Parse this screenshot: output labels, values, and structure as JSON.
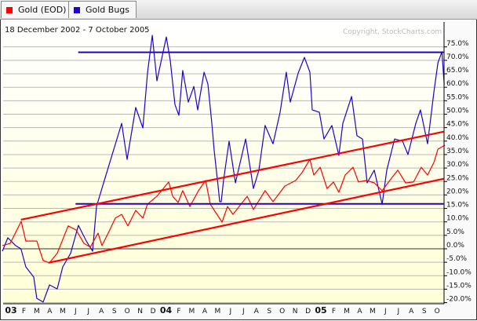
{
  "tabs": [
    {
      "label": "Gold (EOD)",
      "color": "#ff0000"
    },
    {
      "label": "Gold Bugs",
      "color": "#2200cc"
    }
  ],
  "chart_data": {
    "type": "line",
    "title": "18 December 2002 - 7 October 2005",
    "copyright": "Copyright, StockCharts.com",
    "x_unit": "months since January 2003",
    "xlim": [
      -0.6,
      33.5
    ],
    "ylim": [
      -22,
      80
    ],
    "yticks": [
      75,
      70,
      65,
      60,
      55,
      50,
      45,
      40,
      35,
      30,
      25,
      20,
      15,
      10,
      5,
      0,
      -5,
      -10,
      -15,
      -20
    ],
    "ytick_labels": [
      "75.0%",
      "70.0%",
      "65.0%",
      "60.0%",
      "55.0%",
      "50.0%",
      "45.0%",
      "40.0%",
      "35.0%",
      "30.0%",
      "25.0%",
      "20.0%",
      "15.0%",
      "10.0%",
      "5.0%",
      "0.0%",
      "-5.0%",
      "-10.0%",
      "-15.0%",
      "-20.0%"
    ],
    "xtick_labels": [
      "03",
      "F",
      "M",
      "A",
      "M",
      "J",
      "J",
      "A",
      "S",
      "O",
      "N",
      "D",
      "04",
      "F",
      "M",
      "A",
      "M",
      "J",
      "J",
      "A",
      "S",
      "O",
      "N",
      "D",
      "05",
      "F",
      "M",
      "A",
      "M",
      "J",
      "J",
      "A",
      "S",
      "O"
    ],
    "bold_xticks": [
      "03",
      "04",
      "05"
    ],
    "grid": true,
    "series": [
      {
        "name": "Gold Bugs",
        "color": "#2200cc",
        "points": [
          [
            -0.67,
            -0.9
          ],
          [
            -0.24,
            4.1
          ],
          [
            0.36,
            1.2
          ],
          [
            0.77,
            0
          ],
          [
            1.15,
            -6.7
          ],
          [
            1.76,
            -10.5
          ],
          [
            2.0,
            -18.4
          ],
          [
            2.49,
            -19.8
          ],
          [
            2.98,
            -13.4
          ],
          [
            3.58,
            -14.9
          ],
          [
            4.01,
            -6.7
          ],
          [
            4.62,
            -1.7
          ],
          [
            5.22,
            8.7
          ],
          [
            5.83,
            2.9
          ],
          [
            6.32,
            -0.9
          ],
          [
            6.62,
            15.7
          ],
          [
            7.23,
            25.4
          ],
          [
            7.84,
            35
          ],
          [
            8.57,
            46.6
          ],
          [
            8.99,
            33.2
          ],
          [
            9.66,
            52.5
          ],
          [
            10.21,
            44.9
          ],
          [
            10.57,
            65.3
          ],
          [
            10.94,
            79.3
          ],
          [
            11.3,
            62.4
          ],
          [
            12.03,
            78.7
          ],
          [
            12.33,
            70
          ],
          [
            12.7,
            53.6
          ],
          [
            13.0,
            49.6
          ],
          [
            13.3,
            66.2
          ],
          [
            13.73,
            54.5
          ],
          [
            14.16,
            60.3
          ],
          [
            14.46,
            51.6
          ],
          [
            14.95,
            65.6
          ],
          [
            15.25,
            61.2
          ],
          [
            15.55,
            46.6
          ],
          [
            15.74,
            36.2
          ],
          [
            16.04,
            23.3
          ],
          [
            16.16,
            17.5
          ],
          [
            16.28,
            17.5
          ],
          [
            16.46,
            25.4
          ],
          [
            16.89,
            40
          ],
          [
            17.38,
            24.5
          ],
          [
            18.17,
            40.8
          ],
          [
            18.77,
            22.4
          ],
          [
            19.2,
            29.2
          ],
          [
            19.68,
            45.8
          ],
          [
            20.29,
            39
          ],
          [
            20.84,
            50.7
          ],
          [
            21.32,
            65.6
          ],
          [
            21.63,
            54.5
          ],
          [
            22.24,
            65.3
          ],
          [
            22.72,
            71.1
          ],
          [
            23.15,
            65.6
          ],
          [
            23.33,
            51.6
          ],
          [
            23.88,
            50.7
          ],
          [
            24.24,
            40.8
          ],
          [
            24.85,
            45.8
          ],
          [
            25.39,
            34.7
          ],
          [
            25.7,
            46.6
          ],
          [
            26.37,
            56.6
          ],
          [
            26.79,
            42
          ],
          [
            27.22,
            40.8
          ],
          [
            27.58,
            24.5
          ],
          [
            28.13,
            29.2
          ],
          [
            28.74,
            16.6
          ],
          [
            29.1,
            29.2
          ],
          [
            29.71,
            40.8
          ],
          [
            30.32,
            40
          ],
          [
            30.74,
            35
          ],
          [
            31.35,
            46.6
          ],
          [
            31.71,
            51.6
          ],
          [
            32.26,
            39
          ],
          [
            32.75,
            58.3
          ],
          [
            33.06,
            69.1
          ],
          [
            33.37,
            73.2
          ],
          [
            33.55,
            61
          ]
        ]
      },
      {
        "name": "Gold (EOD)",
        "color": "#ff0000",
        "points": [
          [
            -0.67,
            1.2
          ],
          [
            -0.06,
            2
          ],
          [
            0.79,
            10.2
          ],
          [
            1.15,
            2.9
          ],
          [
            2.0,
            2.9
          ],
          [
            2.49,
            -4.4
          ],
          [
            2.98,
            -5.2
          ],
          [
            3.58,
            -1.7
          ],
          [
            4.43,
            8.5
          ],
          [
            5.04,
            7
          ],
          [
            5.65,
            2
          ],
          [
            6.14,
            0.6
          ],
          [
            6.74,
            5.8
          ],
          [
            7.05,
            1.2
          ],
          [
            7.65,
            7
          ],
          [
            8.08,
            11.4
          ],
          [
            8.57,
            12.8
          ],
          [
            9.05,
            8.5
          ],
          [
            9.66,
            14.3
          ],
          [
            10.21,
            11.4
          ],
          [
            10.57,
            16.6
          ],
          [
            11.3,
            19.5
          ],
          [
            12.21,
            24.8
          ],
          [
            12.52,
            19.5
          ],
          [
            12.94,
            17.2
          ],
          [
            13.3,
            21.6
          ],
          [
            13.85,
            15.7
          ],
          [
            14.52,
            21.6
          ],
          [
            15.07,
            25.4
          ],
          [
            15.43,
            16.6
          ],
          [
            16.34,
            9.9
          ],
          [
            16.77,
            15.7
          ],
          [
            17.19,
            12.8
          ],
          [
            18.29,
            19.5
          ],
          [
            18.77,
            14.6
          ],
          [
            19.68,
            21.6
          ],
          [
            20.29,
            17.5
          ],
          [
            21.2,
            23.3
          ],
          [
            22.05,
            25.4
          ],
          [
            22.54,
            28.3
          ],
          [
            23.15,
            33.2
          ],
          [
            23.45,
            27.4
          ],
          [
            23.94,
            30.3
          ],
          [
            24.48,
            22.4
          ],
          [
            24.97,
            24.8
          ],
          [
            25.39,
            21
          ],
          [
            25.88,
            27.4
          ],
          [
            26.49,
            30.3
          ],
          [
            26.91,
            24.8
          ],
          [
            27.52,
            25.4
          ],
          [
            28.13,
            24.5
          ],
          [
            28.74,
            21.6
          ],
          [
            29.34,
            25.4
          ],
          [
            29.95,
            29.2
          ],
          [
            30.56,
            24.5
          ],
          [
            31.17,
            24.8
          ],
          [
            31.77,
            30.3
          ],
          [
            32.26,
            27.4
          ],
          [
            32.75,
            32.1
          ],
          [
            33.06,
            37
          ],
          [
            33.6,
            38.5
          ]
        ]
      }
    ],
    "annotations": [
      {
        "type": "horizontal",
        "color": "#2200cc",
        "value": 73,
        "from": 5.2,
        "to": 33.5
      },
      {
        "type": "horizontal",
        "color": "#2200cc",
        "value": 16.7,
        "from": 5.0,
        "to": 33.5
      },
      {
        "type": "trendline",
        "color": "#ff0000",
        "from": [
          0.77,
          10.8
        ],
        "to": [
          33.5,
          43.5
        ]
      },
      {
        "type": "trendline",
        "color": "#ff0000",
        "from": [
          2.9,
          -5.2
        ],
        "to": [
          33.5,
          26
        ]
      }
    ]
  }
}
